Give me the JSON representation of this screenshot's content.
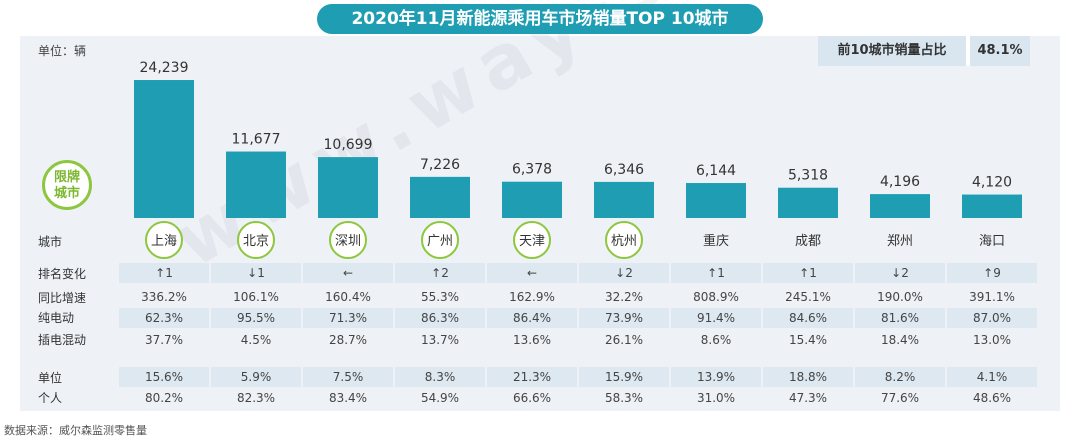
{
  "title": "2020年11月新能源乘用车市场销量TOP 10城市",
  "unit_label": "单位：辆",
  "share": {
    "label": "前10城市销量占比",
    "value": "48.1%"
  },
  "watermark": "www.way-s.cn",
  "limit_badge": {
    "line1": "限牌",
    "line2": "城市"
  },
  "source": "数据来源：威尔森监测零售量",
  "colors": {
    "bar": "#1e9db3",
    "accent_green": "#8dc63f",
    "row_fill": "#dde8f1"
  },
  "row_labels": {
    "city": "城市",
    "rank_change": "排名变化",
    "yoy": "同比增速",
    "bev": "纯电动",
    "phev": "插电混动",
    "org": "单位",
    "personal": "个人"
  },
  "chart_data": {
    "type": "bar",
    "title": "2020年11月新能源乘用车市场销量TOP 10城市",
    "ylabel": "单位：辆",
    "categories": [
      "上海",
      "北京",
      "深圳",
      "广州",
      "天津",
      "杭州",
      "重庆",
      "成都",
      "郑州",
      "海口"
    ],
    "values": [
      24239,
      11677,
      10699,
      7226,
      6378,
      6346,
      6144,
      5318,
      4196,
      4120
    ],
    "value_labels": [
      "24,239",
      "11,677",
      "10,699",
      "7,226",
      "6,378",
      "6,346",
      "6,144",
      "5,318",
      "4,196",
      "4,120"
    ],
    "limited_city": [
      true,
      true,
      true,
      true,
      true,
      true,
      false,
      false,
      false,
      false
    ],
    "ylim": [
      0,
      26000
    ],
    "grid": false,
    "table": {
      "rank_change": [
        "↑1",
        "↓1",
        "←",
        "↑2",
        "←",
        "↓2",
        "↑1",
        "↑1",
        "↓2",
        "↑9"
      ],
      "yoy": [
        "336.2%",
        "106.1%",
        "160.4%",
        "55.3%",
        "162.9%",
        "32.2%",
        "808.9%",
        "245.1%",
        "190.0%",
        "391.1%"
      ],
      "bev": [
        "62.3%",
        "95.5%",
        "71.3%",
        "86.3%",
        "86.4%",
        "73.9%",
        "91.4%",
        "84.6%",
        "81.6%",
        "87.0%"
      ],
      "phev": [
        "37.7%",
        "4.5%",
        "28.7%",
        "13.7%",
        "13.6%",
        "26.1%",
        "8.6%",
        "15.4%",
        "18.4%",
        "13.0%"
      ],
      "org": [
        "15.6%",
        "5.9%",
        "7.5%",
        "8.3%",
        "21.3%",
        "15.9%",
        "13.9%",
        "18.8%",
        "8.2%",
        "4.1%"
      ],
      "personal": [
        "80.2%",
        "82.3%",
        "83.4%",
        "54.9%",
        "66.6%",
        "58.3%",
        "31.0%",
        "47.3%",
        "77.6%",
        "48.6%"
      ]
    }
  }
}
